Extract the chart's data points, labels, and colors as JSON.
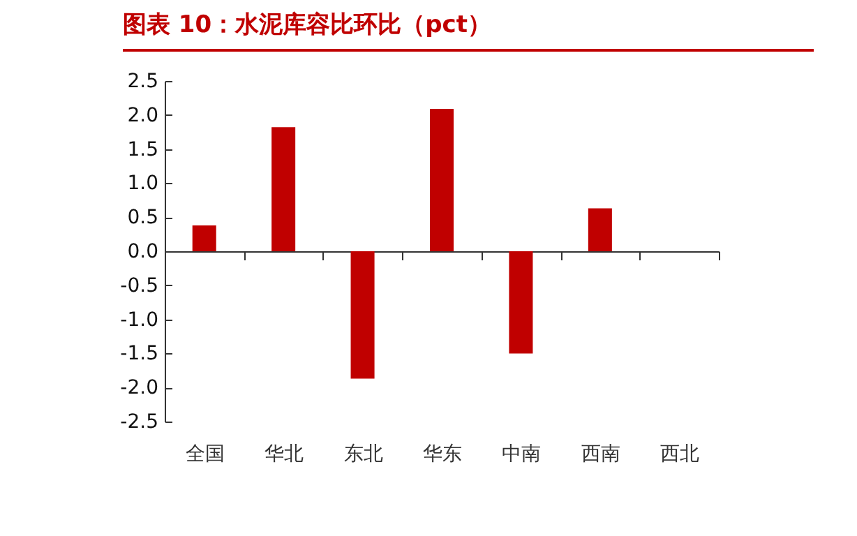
{
  "chart_data": {
    "type": "bar",
    "title": "图表 10：水泥库容比环比（pct）",
    "categories": [
      "全国",
      "华北",
      "东北",
      "华东",
      "中南",
      "西南",
      "西北"
    ],
    "values": [
      0.38,
      1.82,
      -1.87,
      2.09,
      -1.5,
      0.63,
      0
    ],
    "color": "#c00000",
    "ylim": [
      -2.5,
      2.5
    ],
    "yticks": [
      {
        "value": -2.5,
        "label": "-2.5"
      },
      {
        "value": -2,
        "label": "-2.0"
      },
      {
        "value": -1.5,
        "label": "-1.5"
      },
      {
        "value": -1,
        "label": "-1.0"
      },
      {
        "value": -0.5,
        "label": "-0.5"
      },
      {
        "value": 0,
        "label": "0.0"
      },
      {
        "value": 0.5,
        "label": "0.5"
      },
      {
        "value": 1,
        "label": "1.0"
      },
      {
        "value": 1.5,
        "label": "1.5"
      },
      {
        "value": 2,
        "label": "2.0"
      },
      {
        "value": 2.5,
        "label": "2.5"
      }
    ]
  }
}
